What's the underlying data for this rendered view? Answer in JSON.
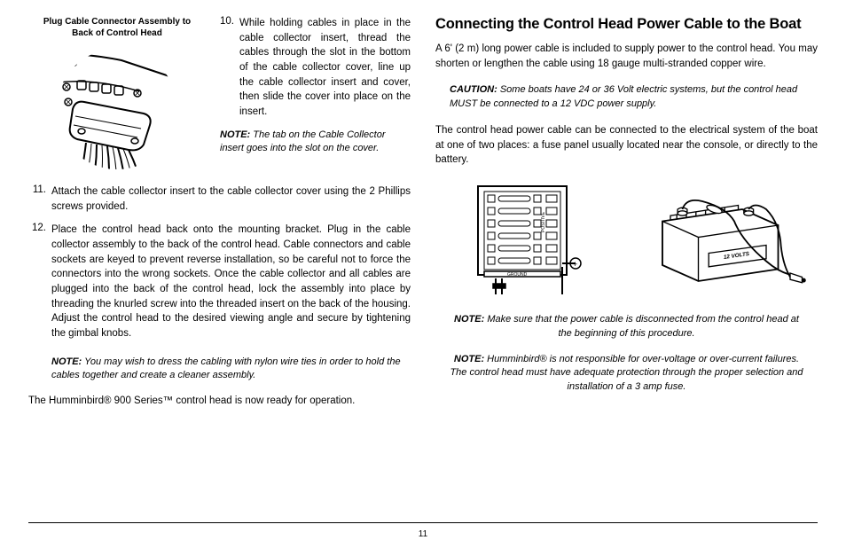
{
  "left": {
    "caption": "Plug Cable Connector Assembly to\nBack of Control Head",
    "step10_num": "10.",
    "step10": "While holding cables in place in the cable collector insert, thread the cables through the slot in the bottom of the cable collector cover, line up the cable collector insert and cover, then slide the cover into place on the insert.",
    "note1_label": "NOTE:",
    "note1": " The tab on the Cable Collector insert goes into the slot on the cover.",
    "step11_num": "11.",
    "step11": "Attach the cable collector insert to the cable collector cover using the 2 Phillips screws provided.",
    "step12_num": "12.",
    "step12": "Place the control head back onto the mounting bracket. Plug in the cable collector assembly to the back of the control head. Cable connectors and cable sockets are keyed to prevent reverse installation, so be careful not to force the connectors into the wrong sockets. Once the cable collector and all cables are plugged into the back of the control head, lock the assembly into place by threading the knurled screw into the threaded insert on the back of the housing. Adjust the control head to the desired viewing angle and secure by tightening the gimbal knobs.",
    "note2_label": "NOTE:",
    "note2": " You may wish to dress the cabling with nylon wire ties in order to hold the cables together and create a cleaner assembly.",
    "final": "The Humminbird® 900 Series™ control head is now ready for operation."
  },
  "right": {
    "heading": "Connecting the Control Head Power Cable to the Boat",
    "p1": "A 6' (2 m) long power cable is included to supply power to the control head. You may shorten or lengthen the cable using 18 gauge multi-stranded copper wire.",
    "caution_label": "CAUTION:",
    "caution": " Some boats have 24 or 36 Volt electric systems, but the control head MUST be connected to a 12 VDC power supply.",
    "p2": "The control head power cable can be connected to the electrical system of the boat at one of two places: a fuse panel usually located near the console, or directly to the battery.",
    "fuse_labels": {
      "positive": "POSITIVE",
      "ground": "GROUND",
      "plus": "+"
    },
    "battery_label": "12 VOLTS",
    "note3_label": "NOTE:",
    "note3": " Make sure that the power cable is disconnected from the control head at the beginning of this procedure.",
    "note4_label": "NOTE:",
    "note4": " Humminbird® is not responsible for over-voltage or over-current failures. The control head must have adequate protection through the proper selection and installation of a 3 amp fuse."
  },
  "page_number": "11"
}
